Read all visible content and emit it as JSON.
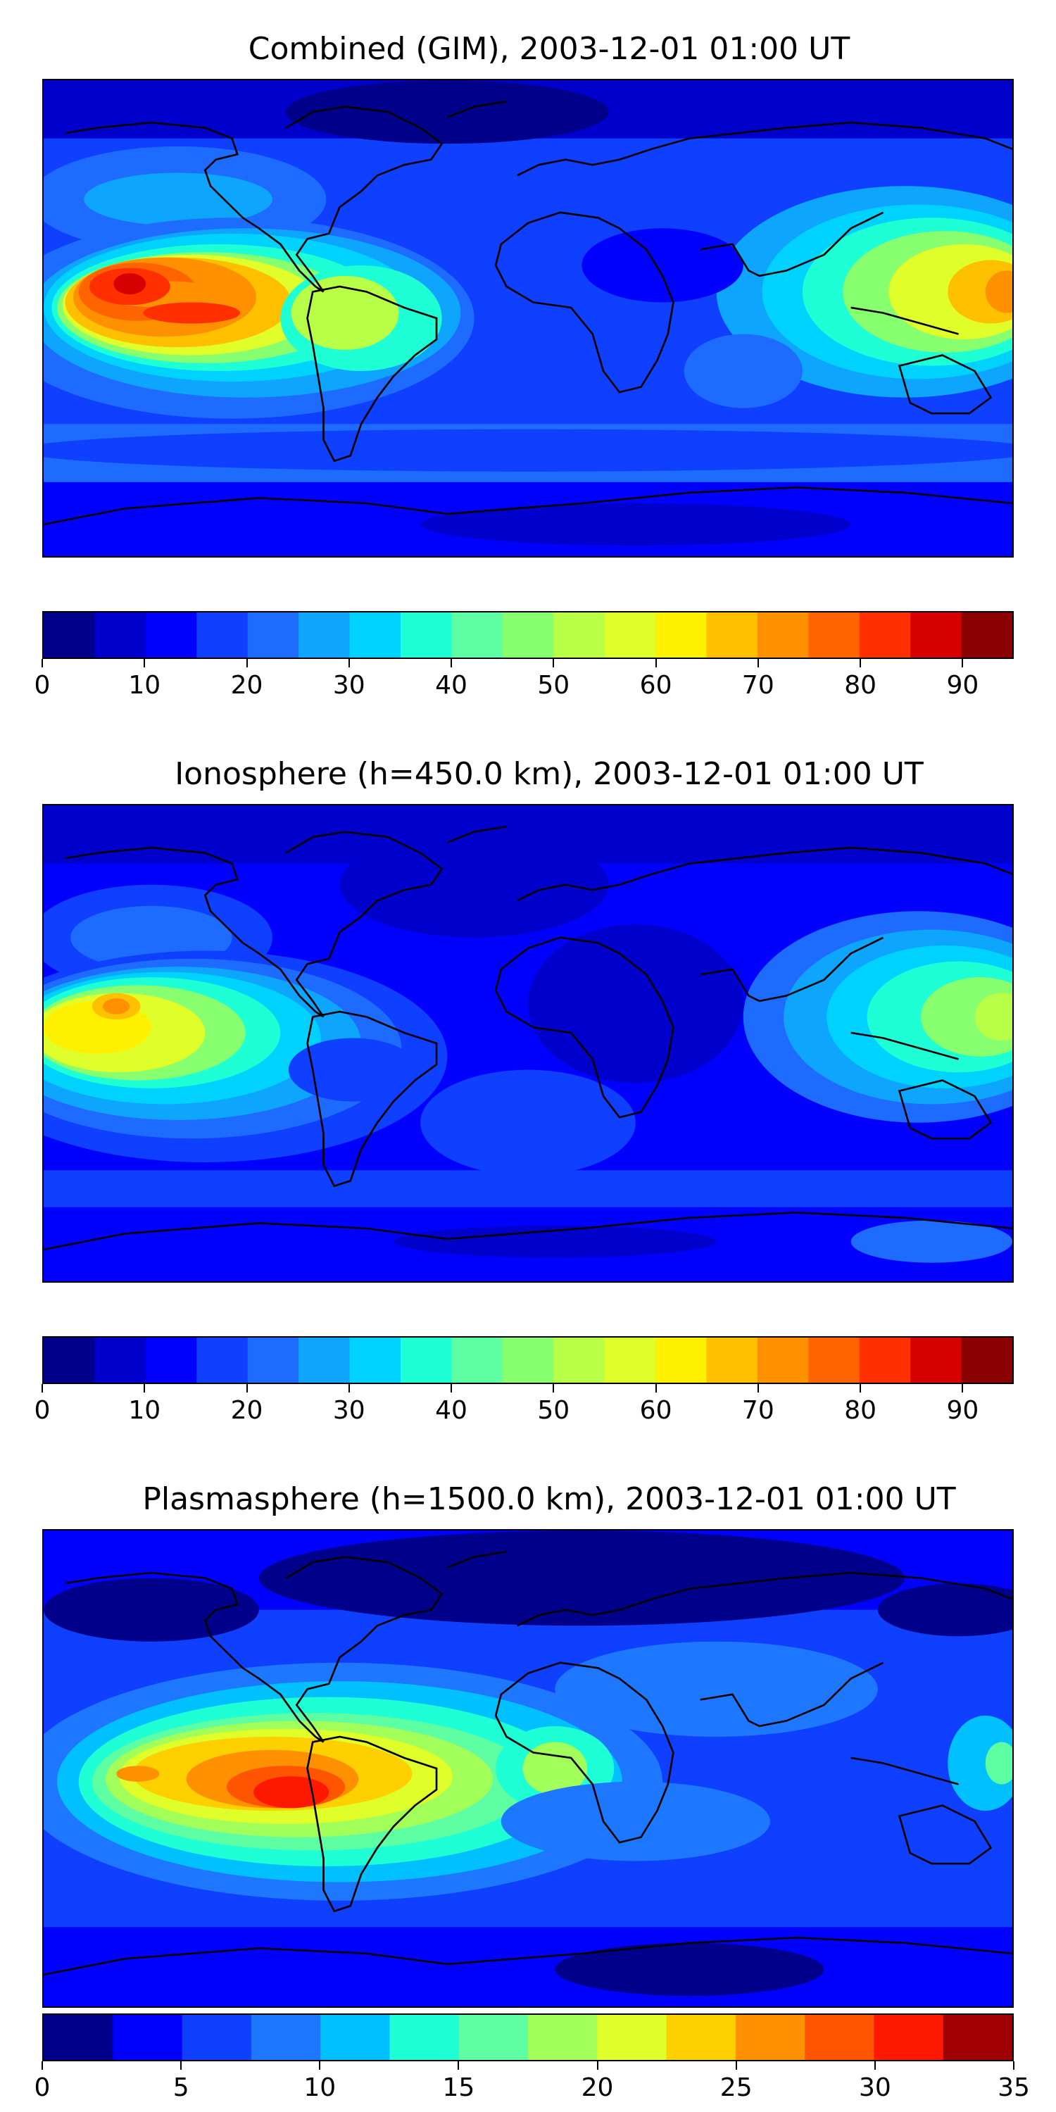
{
  "panels": [
    {
      "title": "Combined (GIM), 2003-12-01 01:00 UT",
      "vmin": 0,
      "vmax": 95,
      "step": 5,
      "colors": [
        "#00008b",
        "#0000cc",
        "#0000ff",
        "#0f3fff",
        "#1e6cff",
        "#0ea5ff",
        "#00d2ff",
        "#1effd5",
        "#5effa2",
        "#88ff6e",
        "#b8ff48",
        "#e0ff2a",
        "#fff000",
        "#ffc000",
        "#ff9000",
        "#ff6400",
        "#ff2f00",
        "#d60000",
        "#8b0000"
      ],
      "ticks": [
        "0",
        "10",
        "20",
        "30",
        "40",
        "50",
        "60",
        "70",
        "80",
        "90"
      ],
      "tick_values": [
        0,
        10,
        20,
        30,
        40,
        50,
        60,
        70,
        80,
        90
      ]
    },
    {
      "title": "Ionosphere  (h=450.0 km), 2003-12-01 01:00 UT",
      "vmin": 0,
      "vmax": 95,
      "step": 5,
      "colors": [
        "#00008b",
        "#0000cc",
        "#0000ff",
        "#0f3fff",
        "#1e6cff",
        "#0ea5ff",
        "#00d2ff",
        "#1effd5",
        "#5effa2",
        "#88ff6e",
        "#b8ff48",
        "#e0ff2a",
        "#fff000",
        "#ffc000",
        "#ff9000",
        "#ff6400",
        "#ff2f00",
        "#d60000",
        "#8b0000"
      ],
      "ticks": [
        "0",
        "10",
        "20",
        "30",
        "40",
        "50",
        "60",
        "70",
        "80",
        "90"
      ],
      "tick_values": [
        0,
        10,
        20,
        30,
        40,
        50,
        60,
        70,
        80,
        90
      ]
    },
    {
      "title": "Plasmasphere (h=1500.0 km), 2003-12-01 01:00 UT",
      "vmin": 0,
      "vmax": 35,
      "step": 2.5,
      "colors": [
        "#00008b",
        "#0000ff",
        "#0f3fff",
        "#1e78ff",
        "#00c0ff",
        "#1effd5",
        "#5effa2",
        "#a2ff5a",
        "#e0ff2a",
        "#ffd000",
        "#ff9000",
        "#ff5400",
        "#ff1800",
        "#a00000"
      ],
      "ticks": [
        "0",
        "5",
        "10",
        "15",
        "20",
        "25",
        "30",
        "35"
      ],
      "tick_values": [
        0,
        5,
        10,
        15,
        20,
        25,
        30,
        35
      ]
    }
  ],
  "colors": {
    "background": "#ffffff",
    "coastline": "#000000"
  }
}
